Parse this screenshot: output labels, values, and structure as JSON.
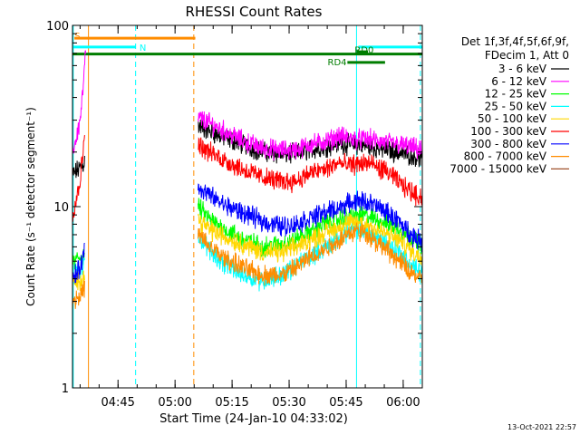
{
  "chart_data": {
    "type": "line",
    "title": "RHESSI Count Rates",
    "xlabel": "Start Time (24-Jan-10 04:33:02)",
    "ylabel": "Count Rate (s⁻¹ detector segment⁻¹)",
    "yscale": "log",
    "ylim": [
      1,
      100
    ],
    "xlim_minutes": [
      0,
      92
    ],
    "y_tick_labels": [
      "1",
      "10",
      "100"
    ],
    "y_tick_values": [
      1,
      10,
      100
    ],
    "x_ticks": [
      {
        "label": "04:45",
        "minute": 11.97
      },
      {
        "label": "05:00",
        "minute": 26.97
      },
      {
        "label": "05:15",
        "minute": 41.97
      },
      {
        "label": "05:30",
        "minute": 56.97
      },
      {
        "label": "05:45",
        "minute": 71.97
      },
      {
        "label": "06:00",
        "minute": 86.97
      }
    ],
    "legend_header": [
      "Det 1f,3f,4f,5f,6f,9f,",
      "FDecim 1, Att 0"
    ],
    "series": [
      {
        "name": "3 - 6 keV",
        "color": "#000000",
        "segments": [
          {
            "t": [
              0,
              1.5,
              2.8,
              3.2
            ],
            "v": [
              15,
              16,
              17,
              18
            ]
          },
          {
            "t": [
              33,
              36,
              40,
              45,
              50,
              55,
              58,
              60,
              62,
              65,
              67,
              70,
              72,
              75,
              78,
              80,
              83,
              86,
              88,
              90,
              92
            ],
            "v": [
              28,
              26,
              24,
              22,
              20,
              19.5,
              19.5,
              19.8,
              20.5,
              21,
              21.5,
              22.5,
              22,
              22,
              21.5,
              21,
              20.5,
              19.8,
              19.5,
              19,
              18.5
            ]
          }
        ]
      },
      {
        "name": "6 - 12 keV",
        "color": "#ff00ff",
        "segments": [
          {
            "t": [
              0,
              1,
              2,
              2.8,
              3.2,
              3.5
            ],
            "v": [
              20,
              24,
              30,
              45,
              60,
              72
            ]
          },
          {
            "t": [
              33,
              36,
              40,
              45,
              50,
              55,
              58,
              60,
              62,
              65,
              67,
              70,
              72,
              75,
              78,
              80,
              83,
              86,
              88,
              90,
              92
            ],
            "v": [
              31,
              29,
              26,
              23,
              21,
              20.5,
              20.5,
              21,
              22,
              22.5,
              23,
              24.5,
              24,
              23.5,
              23.5,
              23,
              22.5,
              22,
              21.5,
              21,
              20
            ]
          }
        ]
      },
      {
        "name": "12 - 25 keV",
        "color": "#00ff00",
        "segments": [
          {
            "t": [
              0,
              1.5,
              2.8,
              3.2
            ],
            "v": [
              4.8,
              5.2,
              5.4,
              5.6
            ]
          },
          {
            "t": [
              33,
              36,
              40,
              45,
              50,
              55,
              58,
              60,
              62,
              65,
              67,
              70,
              72,
              75,
              78,
              80,
              83,
              86,
              88,
              90,
              92
            ],
            "v": [
              10,
              8.5,
              7.5,
              6.6,
              6,
              6.2,
              6.5,
              6.8,
              7.2,
              7.8,
              8.2,
              8.5,
              8.8,
              9,
              8.8,
              8.5,
              8,
              7.5,
              7,
              6.5,
              6.2
            ]
          }
        ]
      },
      {
        "name": "25 - 50 keV",
        "color": "#00ffff",
        "segments": [
          {
            "t": [
              0,
              1.5,
              2.8,
              3.2
            ],
            "v": [
              4.2,
              4.4,
              4.6,
              4.8
            ]
          },
          {
            "t": [
              33,
              36,
              40,
              45,
              50,
              55,
              58,
              60,
              62,
              65,
              67,
              70,
              72,
              75,
              78,
              80,
              83,
              86,
              88,
              90,
              92
            ],
            "v": [
              7,
              5.8,
              4.8,
              4.2,
              3.9,
              4.2,
              4.6,
              4.9,
              5.3,
              5.7,
              6.1,
              6.6,
              7.2,
              7.6,
              7.2,
              6.8,
              6.2,
              5.6,
              5,
              4.6,
              4.3
            ]
          }
        ]
      },
      {
        "name": "50 - 100 keV",
        "color": "#ffd700",
        "segments": [
          {
            "t": [
              0,
              1.5,
              2.8,
              3.2
            ],
            "v": [
              3.8,
              3.9,
              4.1,
              4.3
            ]
          },
          {
            "t": [
              33,
              36,
              40,
              45,
              50,
              55,
              58,
              60,
              62,
              65,
              67,
              70,
              72,
              75,
              78,
              80,
              83,
              86,
              88,
              90,
              92
            ],
            "v": [
              8.5,
              7.5,
              6.8,
              6.2,
              5.6,
              5.6,
              5.9,
              6.2,
              6.5,
              6.9,
              7.3,
              7.7,
              8,
              8.2,
              7.9,
              7.5,
              7,
              6.5,
              6,
              5.5,
              5.2
            ]
          }
        ]
      },
      {
        "name": "100 - 300 keV",
        "color": "#ff0000",
        "segments": [
          {
            "t": [
              0,
              1,
              2,
              2.8,
              3.2
            ],
            "v": [
              9,
              11,
              14,
              20,
              28
            ]
          },
          {
            "t": [
              33,
              36,
              40,
              45,
              50,
              55,
              58,
              60,
              62,
              65,
              67,
              70,
              72,
              75,
              78,
              80,
              83,
              86,
              88,
              90,
              92
            ],
            "v": [
              22,
              20,
              18,
              16,
              14.5,
              13.8,
              13.8,
              14.2,
              15.2,
              15.8,
              16.2,
              17.5,
              16.8,
              17.2,
              17.5,
              16.5,
              15.5,
              13.5,
              12.5,
              11.8,
              11.2
            ]
          }
        ]
      },
      {
        "name": "300 - 800 keV",
        "color": "#0000ff",
        "segments": [
          {
            "t": [
              0,
              1.5,
              2.8,
              3.2
            ],
            "v": [
              4,
              4.4,
              5.2,
              6
            ]
          },
          {
            "t": [
              33,
              36,
              40,
              45,
              50,
              55,
              58,
              60,
              62,
              65,
              67,
              70,
              72,
              75,
              78,
              80,
              83,
              86,
              88,
              90,
              92
            ],
            "v": [
              13,
              11.5,
              10.2,
              9.2,
              8.3,
              7.8,
              7.9,
              8.2,
              8.6,
              9,
              9.4,
              9.8,
              10.3,
              10.8,
              10.5,
              10,
              9.2,
              8.2,
              7.4,
              6.8,
              6.4
            ]
          }
        ]
      },
      {
        "name": "800 - 7000 keV",
        "color": "#ff8c00",
        "segments": [
          {
            "t": [
              0,
              1.5,
              2.8,
              3.2
            ],
            "v": [
              3,
              3.2,
              3.4,
              3.6
            ]
          },
          {
            "t": [
              33,
              36,
              40,
              45,
              50,
              55,
              58,
              60,
              62,
              65,
              67,
              70,
              72,
              75,
              78,
              80,
              83,
              86,
              88,
              90,
              92
            ],
            "v": [
              7,
              6,
              5.2,
              4.6,
              4.2,
              4.2,
              4.5,
              4.8,
              5.2,
              5.6,
              6,
              6.5,
              7,
              7.4,
              7,
              6.4,
              5.7,
              5,
              4.5,
              4.2,
              3.9
            ]
          }
        ]
      },
      {
        "name": "7000 - 15000 keV",
        "color": "#a0522d",
        "segments": []
      }
    ],
    "vertical_lines": [
      {
        "minute": 0.2,
        "color": "#00ffff",
        "style": "solid"
      },
      {
        "minute": 4.2,
        "color": "#ff8c00",
        "style": "solid"
      },
      {
        "minute": 16.6,
        "color": "#00ffff",
        "style": "dashed"
      },
      {
        "minute": 31.9,
        "color": "#ff8c00",
        "style": "dashed"
      },
      {
        "minute": 74.7,
        "color": "#00ffff",
        "style": "solid"
      },
      {
        "minute": 91.5,
        "color": "#00ffff",
        "style": "dashed"
      }
    ],
    "bars": [
      {
        "label": "S",
        "color": "#ff8c00",
        "start": 0.5,
        "end": 32.3,
        "y": 85,
        "label_minute": 1.3,
        "label_y": 88
      },
      {
        "label": "N",
        "color": "#00ffff",
        "start": 0,
        "end": 16.6,
        "y": 76,
        "label_minute": 18.5,
        "label_y": 76
      },
      {
        "label": "",
        "color": "#00ffff",
        "start": 75.2,
        "end": 92,
        "y": 76,
        "label_minute": 0,
        "label_y": 0
      },
      {
        "label": "",
        "color": "#007d00",
        "start": 0,
        "end": 92,
        "y": 69.5,
        "label_minute": 0,
        "label_y": 0
      },
      {
        "label": "RD0",
        "color": "#007d00",
        "start": 74.7,
        "end": 77.7,
        "y": 71.5,
        "label_minute": 76.7,
        "label_y": 73.5
      },
      {
        "label": "RD4",
        "color": "#007d00",
        "start": 72.3,
        "end": 82.2,
        "y": 62.5,
        "label_minute": 69.6,
        "label_y": 63
      }
    ],
    "footer": "13-Oct-2021 22:57"
  }
}
